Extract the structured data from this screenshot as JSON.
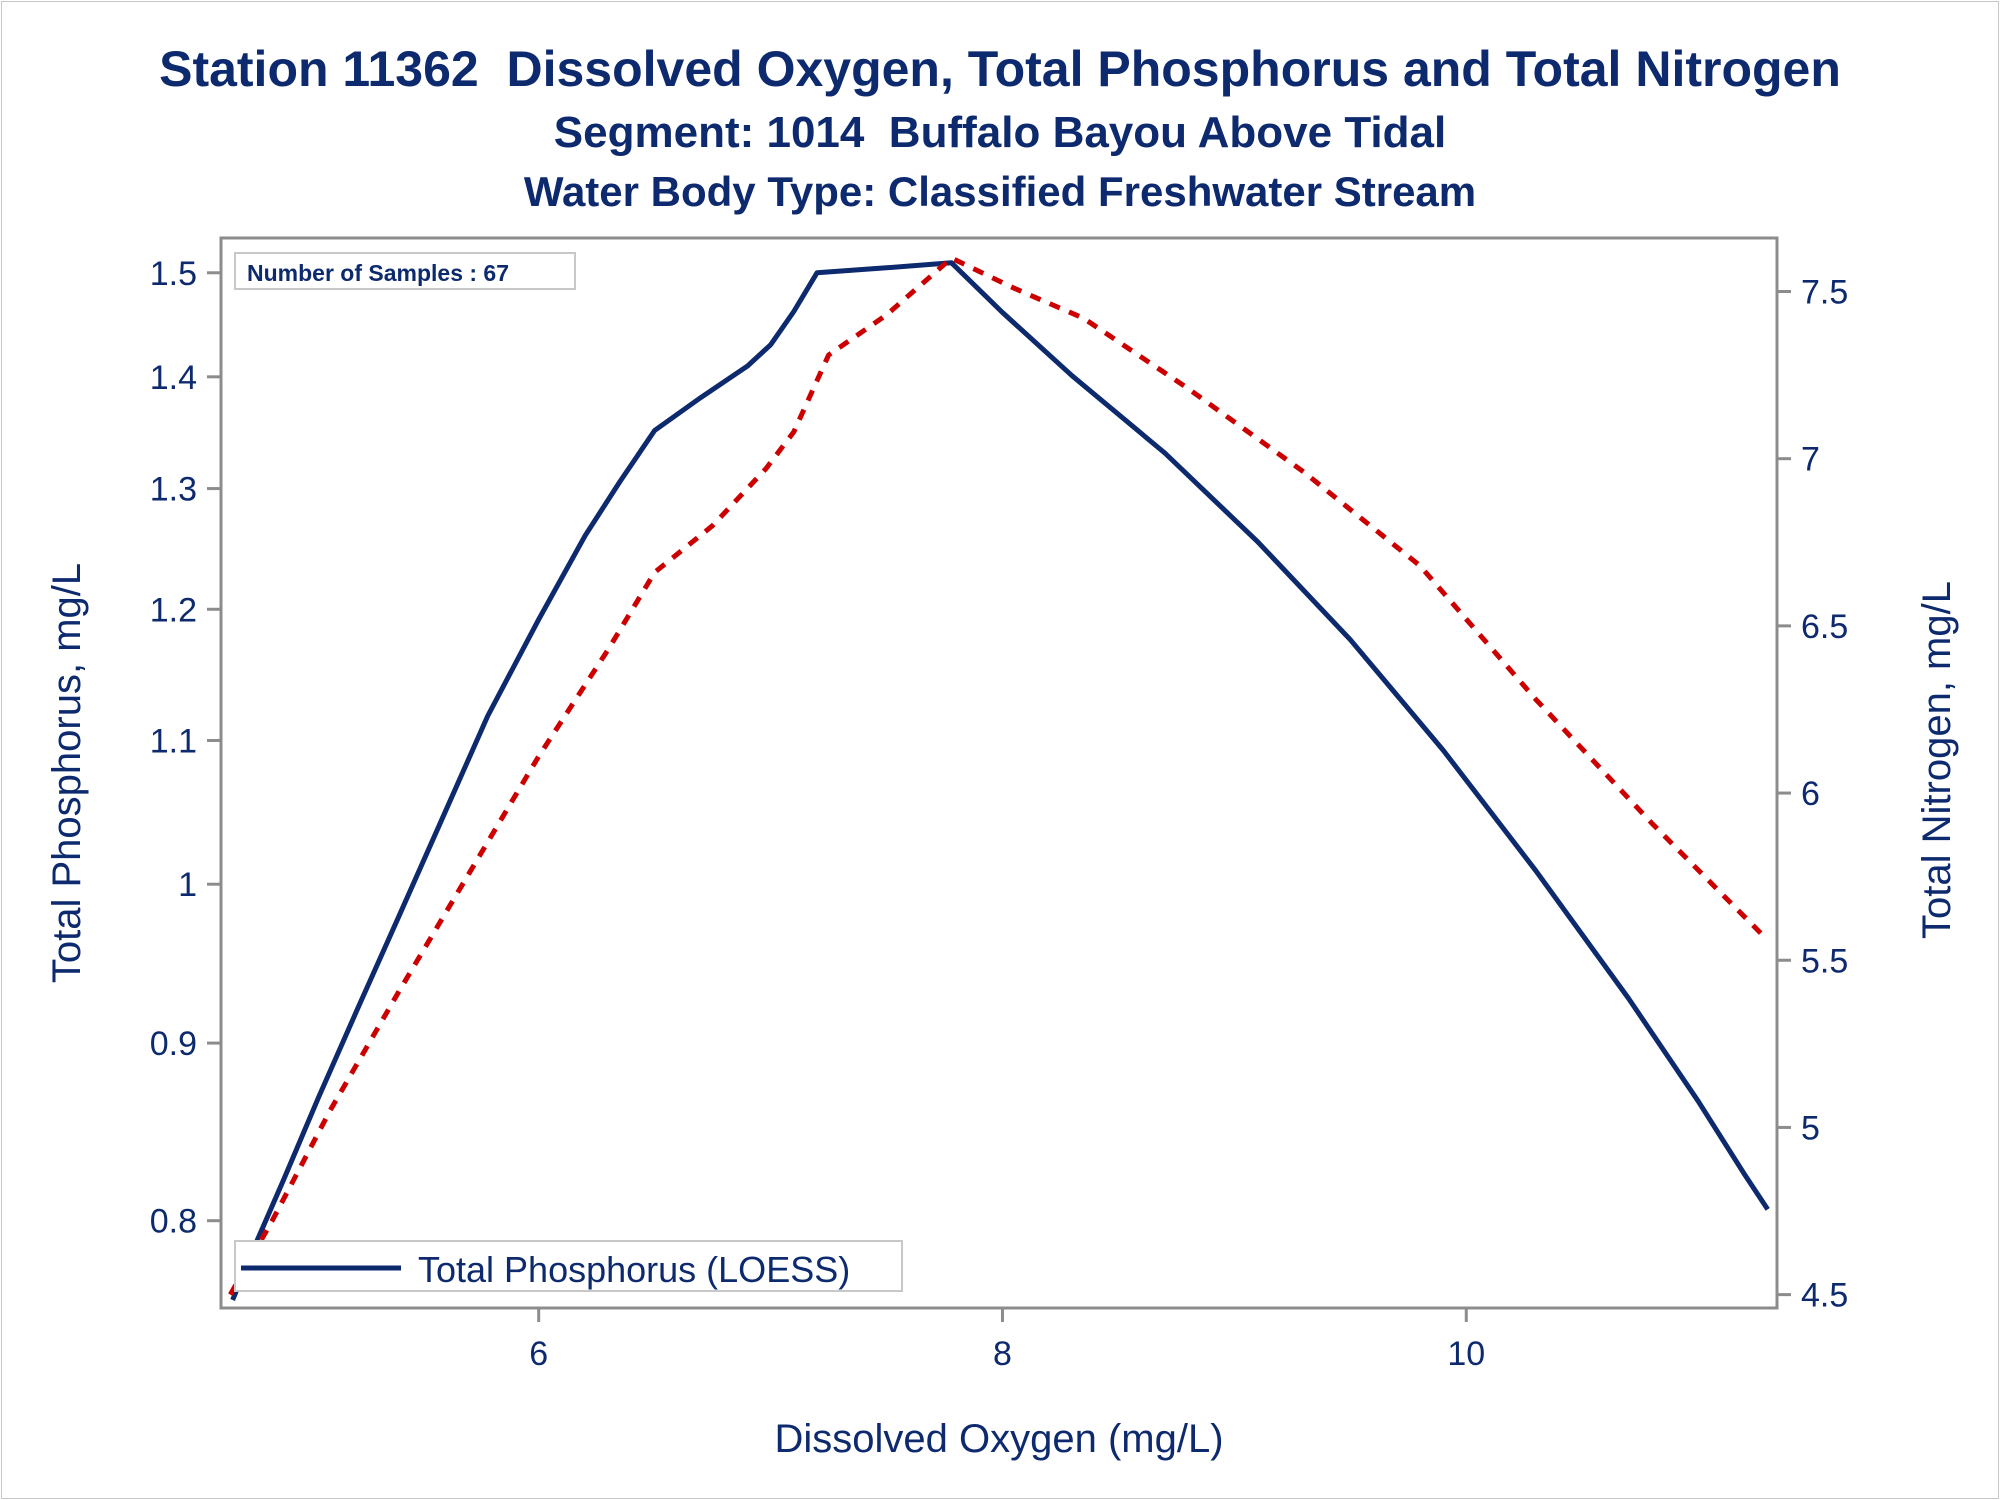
{
  "titles": {
    "line1": "Station 11362  Dissolved Oxygen, Total Phosphorus and Total Nitrogen",
    "line2": "Segment: 1014  Buffalo Bayou Above Tidal",
    "line3": "Water Body Type: Classified Freshwater Stream"
  },
  "colors": {
    "text": "#0e2a6e",
    "phosphorus_line": "#0e2a6e",
    "nitrogen_line": "#cc0000",
    "frame": "#8c8c8c"
  },
  "chart_data": {
    "type": "line",
    "title": "Station 11362  Dissolved Oxygen, Total Phosphorus and Total Nitrogen",
    "xlabel": "Dissolved Oxygen (mg/L)",
    "ylabel": "Total Phosphorus, mg/L",
    "y2label": "Total Nitrogen, mg/L",
    "xlim": [
      4.63,
      11.34
    ],
    "ylim": [
      0.755,
      1.535
    ],
    "y_scale": "log",
    "y2lim": [
      4.46,
      7.66
    ],
    "x_ticks": [
      6,
      8,
      10
    ],
    "y_ticks": [
      0.8,
      0.9,
      1,
      1.1,
      1.2,
      1.3,
      1.4,
      1.5
    ],
    "y2_ticks": [
      4.5,
      5,
      5.5,
      6,
      6.5,
      7,
      7.5
    ],
    "annotation": "Number of Samples : 67",
    "legend": {
      "placement": "bottom-left",
      "entries": [
        "Total Phosphorus (LOESS)"
      ]
    },
    "grid": false,
    "series": [
      {
        "name": "Total Phosphorus (LOESS)",
        "axis": "left",
        "style": "solid",
        "color": "#0e2a6e",
        "points": [
          [
            4.68,
            0.759
          ],
          [
            4.78,
            0.788
          ],
          [
            4.9,
            0.822
          ],
          [
            5.05,
            0.868
          ],
          [
            5.22,
            0.921
          ],
          [
            5.4,
            0.98
          ],
          [
            5.58,
            1.043
          ],
          [
            5.78,
            1.118
          ],
          [
            6.0,
            1.192
          ],
          [
            6.2,
            1.26
          ],
          [
            6.35,
            1.306
          ],
          [
            6.5,
            1.351
          ],
          [
            6.7,
            1.381
          ],
          [
            6.9,
            1.41
          ],
          [
            7.0,
            1.43
          ],
          [
            7.1,
            1.462
          ],
          [
            7.2,
            1.5
          ],
          [
            7.5,
            1.505
          ],
          [
            7.78,
            1.51
          ],
          [
            8.0,
            1.461
          ],
          [
            8.3,
            1.401
          ],
          [
            8.7,
            1.331
          ],
          [
            9.1,
            1.255
          ],
          [
            9.5,
            1.176
          ],
          [
            9.9,
            1.093
          ],
          [
            10.3,
            1.009
          ],
          [
            10.7,
            0.927
          ],
          [
            11.0,
            0.866
          ],
          [
            11.2,
            0.825
          ],
          [
            11.3,
            0.806
          ]
        ]
      },
      {
        "name": "",
        "axis": "right",
        "style": "dashed",
        "color": "#cc0000",
        "points": [
          [
            4.67,
            4.5
          ],
          [
            4.85,
            4.72
          ],
          [
            5.1,
            5.05
          ],
          [
            5.4,
            5.41
          ],
          [
            5.7,
            5.76
          ],
          [
            6.0,
            6.11
          ],
          [
            6.3,
            6.43
          ],
          [
            6.5,
            6.66
          ],
          [
            6.75,
            6.8
          ],
          [
            6.98,
            6.97
          ],
          [
            7.1,
            7.08
          ],
          [
            7.25,
            7.31
          ],
          [
            7.5,
            7.43
          ],
          [
            7.78,
            7.6
          ],
          [
            8.05,
            7.51
          ],
          [
            8.35,
            7.42
          ],
          [
            8.8,
            7.21
          ],
          [
            9.3,
            6.96
          ],
          [
            9.8,
            6.68
          ],
          [
            10.3,
            6.28
          ],
          [
            10.8,
            5.91
          ],
          [
            11.3,
            5.56
          ]
        ]
      }
    ]
  }
}
